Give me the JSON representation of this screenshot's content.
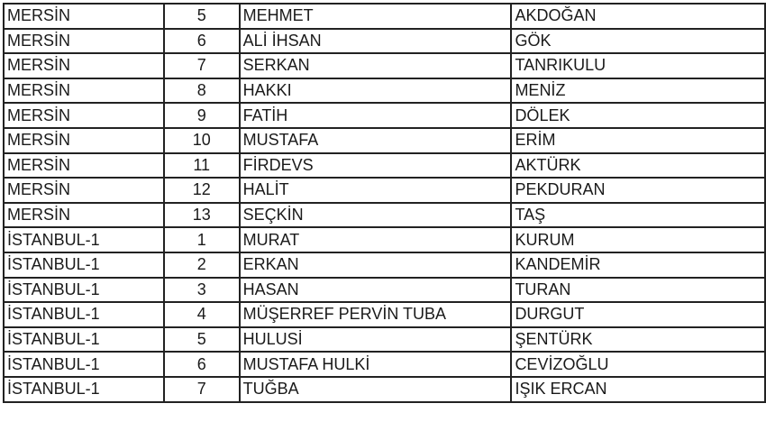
{
  "table": {
    "rows": [
      {
        "city": "MERSİN",
        "no": "5",
        "name": "MEHMET",
        "surname": "AKDOĞAN"
      },
      {
        "city": "MERSİN",
        "no": "6",
        "name": "ALİ İHSAN",
        "surname": "GÖK"
      },
      {
        "city": "MERSİN",
        "no": "7",
        "name": "SERKAN",
        "surname": "TANRIKULU"
      },
      {
        "city": "MERSİN",
        "no": "8",
        "name": "HAKKI",
        "surname": "MENİZ"
      },
      {
        "city": "MERSİN",
        "no": "9",
        "name": "FATİH",
        "surname": "DÖLEK"
      },
      {
        "city": "MERSİN",
        "no": "10",
        "name": "MUSTAFA",
        "surname": "ERİM"
      },
      {
        "city": "MERSİN",
        "no": "11",
        "name": "FİRDEVS",
        "surname": "AKTÜRK"
      },
      {
        "city": "MERSİN",
        "no": "12",
        "name": "HALİT",
        "surname": "PEKDURAN"
      },
      {
        "city": "MERSİN",
        "no": "13",
        "name": "SEÇKİN",
        "surname": "TAŞ"
      },
      {
        "city": "İSTANBUL-1",
        "no": "1",
        "name": "MURAT",
        "surname": "KURUM"
      },
      {
        "city": "İSTANBUL-1",
        "no": "2",
        "name": "ERKAN",
        "surname": "KANDEMİR"
      },
      {
        "city": "İSTANBUL-1",
        "no": "3",
        "name": "HASAN",
        "surname": "TURAN"
      },
      {
        "city": "İSTANBUL-1",
        "no": "4",
        "name": "MÜŞERREF PERVİN TUBA",
        "surname": "DURGUT"
      },
      {
        "city": "İSTANBUL-1",
        "no": "5",
        "name": "HULUSİ",
        "surname": "ŞENTÜRK"
      },
      {
        "city": "İSTANBUL-1",
        "no": "6",
        "name": "MUSTAFA HULKİ",
        "surname": "CEVİZOĞLU"
      },
      {
        "city": "İSTANBUL-1",
        "no": "7",
        "name": "TUĞBA",
        "surname": "IŞIK ERCAN"
      }
    ]
  }
}
